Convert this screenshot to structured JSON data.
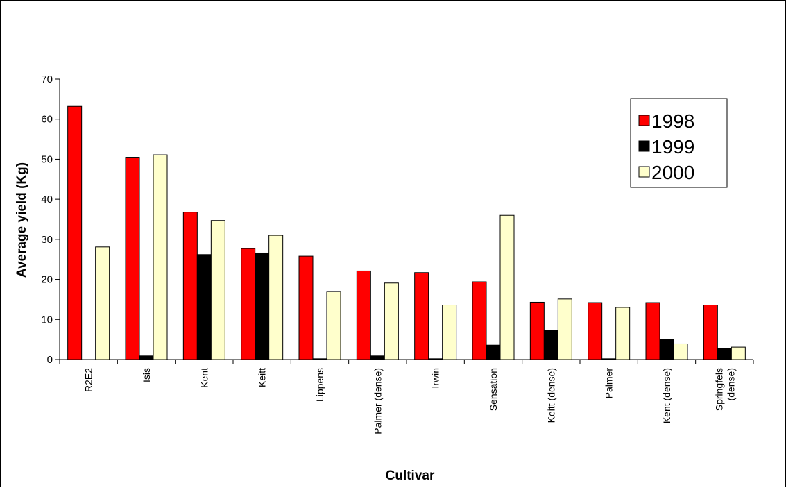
{
  "chart_data": {
    "type": "bar",
    "title": "",
    "xlabel": "Cultivar",
    "ylabel": "Average yield (Kg)",
    "ylim": [
      0,
      70
    ],
    "yticks": [
      0,
      10,
      20,
      30,
      40,
      50,
      60,
      70
    ],
    "grid": false,
    "legend_position": "top-right",
    "categories": [
      "R2E2",
      "Isis",
      "Kent",
      "Keitt",
      "Lippens",
      "Palmer (dense)",
      "Irwin",
      "Sensation",
      "Keitt (dense)",
      "Palmer",
      "Kent (dense)",
      "Springfels (dense)"
    ],
    "series": [
      {
        "name": "1998",
        "color": "#ff0000",
        "values": [
          63.2,
          50.5,
          36.8,
          27.7,
          25.8,
          22.1,
          21.7,
          19.4,
          14.3,
          14.2,
          14.2,
          13.6
        ]
      },
      {
        "name": "1999",
        "color": "#000000",
        "values": [
          0,
          0.9,
          26.2,
          26.6,
          0.2,
          0.9,
          0.2,
          3.6,
          7.3,
          0.2,
          5.0,
          2.8
        ]
      },
      {
        "name": "2000",
        "color": "#ffffcc",
        "values": [
          28.1,
          51.1,
          34.7,
          31.0,
          17.0,
          19.1,
          13.6,
          36.0,
          15.1,
          13.0,
          3.9,
          3.1
        ]
      }
    ]
  }
}
